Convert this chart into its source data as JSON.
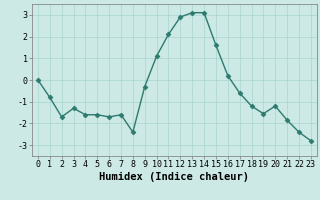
{
  "x": [
    0,
    1,
    2,
    3,
    4,
    5,
    6,
    7,
    8,
    9,
    10,
    11,
    12,
    13,
    14,
    15,
    16,
    17,
    18,
    19,
    20,
    21,
    22,
    23
  ],
  "y": [
    0.0,
    -0.8,
    -1.7,
    -1.3,
    -1.6,
    -1.6,
    -1.7,
    -1.6,
    -2.4,
    -0.3,
    1.1,
    2.1,
    2.9,
    3.1,
    3.1,
    1.6,
    0.2,
    -0.6,
    -1.2,
    -1.55,
    -1.2,
    -1.85,
    -2.4,
    -2.8
  ],
  "line_color": "#2d7a6e",
  "marker": "D",
  "markersize": 2.5,
  "linewidth": 1.0,
  "bg_color": "#cce9e5",
  "grid_color": "#aad4cf",
  "xlabel": "Humidex (Indice chaleur)",
  "ylabel": "",
  "xlim": [
    -0.5,
    23.5
  ],
  "ylim": [
    -3.5,
    3.5
  ],
  "yticks": [
    -3,
    -2,
    -1,
    0,
    1,
    2,
    3
  ],
  "xticks": [
    0,
    1,
    2,
    3,
    4,
    5,
    6,
    7,
    8,
    9,
    10,
    11,
    12,
    13,
    14,
    15,
    16,
    17,
    18,
    19,
    20,
    21,
    22,
    23
  ],
  "tick_fontsize": 6,
  "xlabel_fontsize": 7.5
}
